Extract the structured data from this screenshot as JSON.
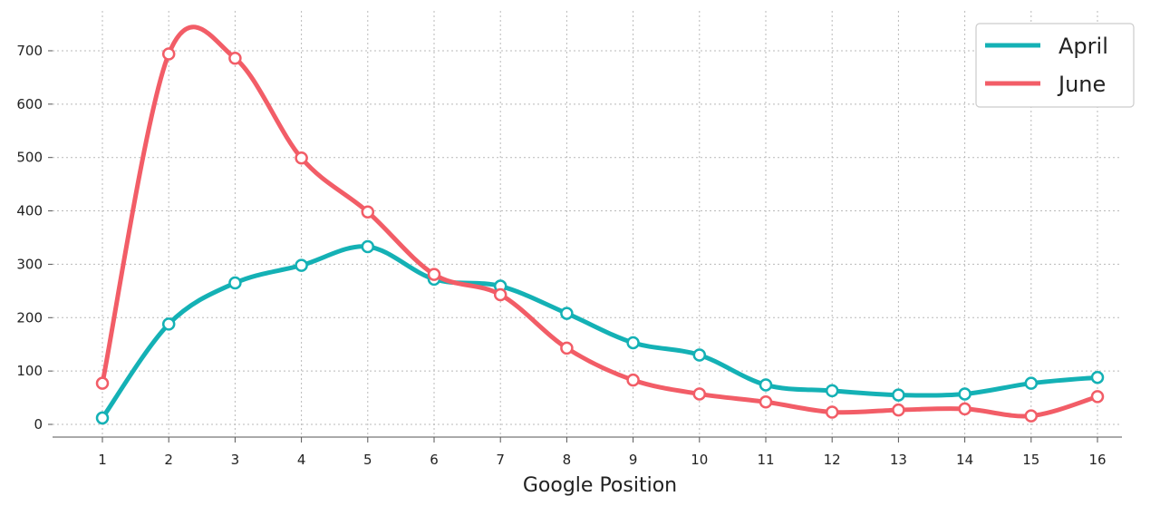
{
  "chart_data": {
    "type": "line",
    "title": "",
    "xlabel": "Google Position",
    "ylabel": "",
    "x": [
      1,
      2,
      3,
      4,
      5,
      6,
      7,
      8,
      9,
      10,
      11,
      12,
      13,
      14,
      15,
      16
    ],
    "x_tick_labels": [
      "1",
      "2",
      "3",
      "4",
      "5",
      "6",
      "7",
      "8",
      "9",
      "10",
      "11",
      "12",
      "13",
      "14",
      "15",
      "16"
    ],
    "y_ticks": [
      0,
      100,
      200,
      300,
      400,
      500,
      600,
      700
    ],
    "y_tick_labels": [
      "0",
      "100",
      "200",
      "300",
      "400",
      "500",
      "600",
      "700"
    ],
    "xlim": [
      0.3,
      16.4
    ],
    "ylim": [
      -25,
      770
    ],
    "grid": true,
    "legend_position": "top-right",
    "series": [
      {
        "name": "April",
        "color": "#14b1b5",
        "values": [
          12,
          188,
          265,
          298,
          333,
          272,
          259,
          208,
          153,
          130,
          74,
          63,
          55,
          57,
          77,
          88
        ]
      },
      {
        "name": "June",
        "color": "#f25d67",
        "values": [
          77,
          694,
          686,
          499,
          398,
          281,
          243,
          143,
          83,
          57,
          42,
          23,
          27,
          29,
          16,
          52
        ]
      }
    ]
  }
}
